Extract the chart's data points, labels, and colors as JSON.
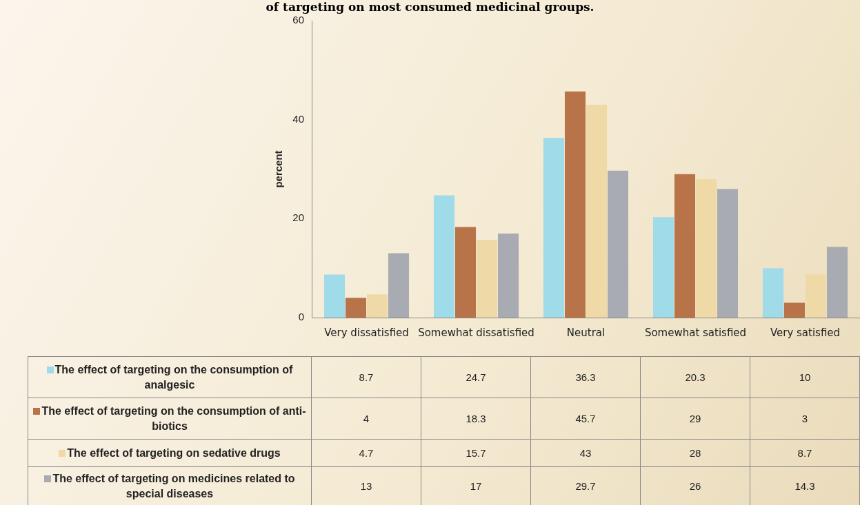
{
  "chart_data": {
    "type": "bar",
    "title": "of targeting on most consumed medicinal groups.",
    "ylabel": "percent",
    "categories": [
      "Very dissatisfied",
      "Somewhat dissatisfied",
      "Neutral",
      "Somewhat satisfied",
      "Very satisfied"
    ],
    "series": [
      {
        "name": "The effect of targeting on the consumption of analgesic",
        "color": "#9fdbe8",
        "values": [
          8.7,
          24.7,
          36.3,
          20.3,
          10
        ]
      },
      {
        "name": "The effect of targeting on the consumption of anti-biotics",
        "color": "#b87448",
        "values": [
          4,
          18.3,
          45.7,
          29,
          3
        ]
      },
      {
        "name": "The effect of targeting on sedative drugs",
        "color": "#efd9a6",
        "values": [
          4.7,
          15.7,
          43,
          28,
          8.7
        ]
      },
      {
        "name": "The effect of targeting on medicines related to special diseases",
        "color": "#a9abb2",
        "values": [
          13,
          17,
          29.7,
          26,
          14.3
        ]
      }
    ],
    "ylim": [
      0,
      60
    ],
    "yticks": [
      0,
      20,
      40,
      60
    ],
    "grid": false,
    "legend": "bottom",
    "data_labels": true
  }
}
